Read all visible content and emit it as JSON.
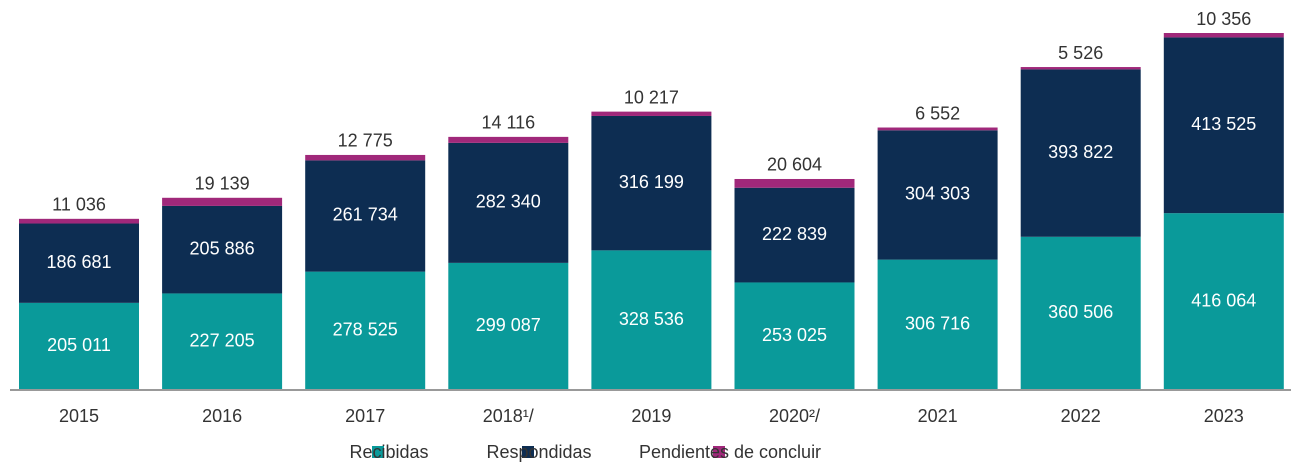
{
  "chart_data": {
    "type": "stacked_bar",
    "categories": [
      "2015",
      "2016",
      "2017",
      "2018¹/",
      "2019",
      "2020²/",
      "2021",
      "2022",
      "2023"
    ],
    "series": [
      {
        "name": "Recibidas",
        "color": "#0a9a9a",
        "values": [
          205011,
          227205,
          278525,
          299087,
          328536,
          253025,
          306716,
          360506,
          416064
        ],
        "value_labels": [
          "205 011",
          "227 205",
          "278 525",
          "299 087",
          "328 536",
          "253 025",
          "306 716",
          "360 506",
          "416 064"
        ]
      },
      {
        "name": "Respondidas",
        "color": "#0d2d52",
        "values": [
          186681,
          205886,
          261734,
          282340,
          316199,
          222839,
          304303,
          393822,
          413525
        ],
        "value_labels": [
          "186 681",
          "205 886",
          "261 734",
          "282 340",
          "316 199",
          "222 839",
          "304 303",
          "393 822",
          "413 525"
        ]
      },
      {
        "name": "Pendientes de concluir",
        "color": "#a0287a",
        "values": [
          11036,
          19139,
          12775,
          14116,
          10217,
          20604,
          6552,
          5526,
          10356
        ],
        "value_labels": [
          "11 036",
          "19 139",
          "12 775",
          "14 116",
          "10 217",
          "20 604",
          "6 552",
          "5 526",
          "10 356"
        ]
      }
    ],
    "legend": "bottom"
  }
}
